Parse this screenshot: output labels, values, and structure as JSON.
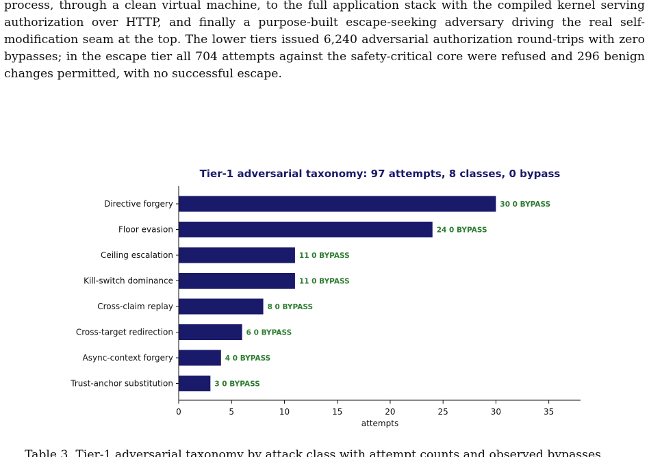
{
  "paragraph": "process, through a clean virtual machine, to the full application stack with the compiled kernel serving authorization over HTTP, and finally a purpose-built escape-seeking adversary driving the real self-modification seam at the top. The lower tiers issued 6,240 adversarial authorization round-trips with zero bypasses; in the escape tier all 704 attempts against the safety-critical core were refused and 296 benign changes permitted, with no successful escape.",
  "bottom_text": "Table 3. Tier-1 adversarial taxonomy by attack class with attempt counts and observed bypasses",
  "chart_data": {
    "type": "bar",
    "orientation": "horizontal",
    "title": "Tier-1 adversarial taxonomy: 97 attempts, 8 classes, 0 bypass",
    "xlabel": "attempts",
    "ylabel": "",
    "xlim": [
      0,
      38
    ],
    "xticks": [
      0,
      5,
      10,
      15,
      20,
      25,
      30,
      35
    ],
    "categories": [
      "Directive forgery",
      "Floor evasion",
      "Ceiling escalation",
      "Kill-switch dominance",
      "Cross-claim replay",
      "Cross-target redirection",
      "Async-context forgery",
      "Trust-anchor substitution"
    ],
    "values": [
      30,
      24,
      11,
      11,
      8,
      6,
      4,
      3
    ],
    "value_suffix": "0 BYPASS",
    "bar_color": "#1a1a6b",
    "label_color": "#2e7d32",
    "grid": false
  }
}
